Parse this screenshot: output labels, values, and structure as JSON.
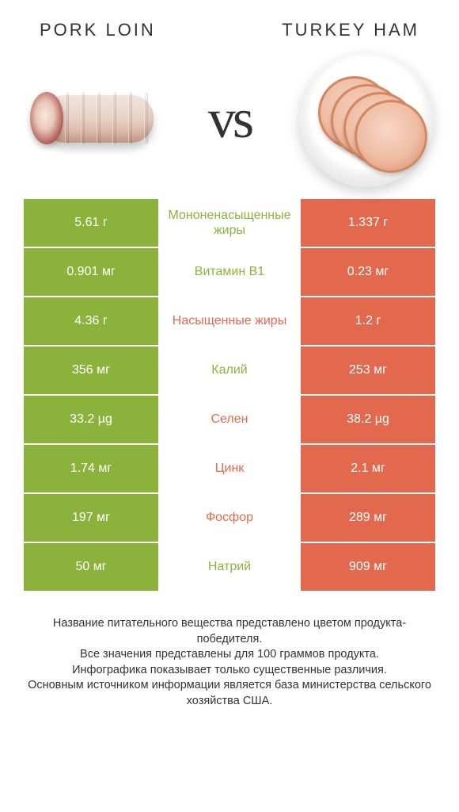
{
  "titles": {
    "left": "Pork loin",
    "right": "Turkey ham"
  },
  "vs_label": "vs",
  "colors": {
    "left": "#8bb33b",
    "right": "#e2694d",
    "row_bg": "#ffffff",
    "text": "#333333"
  },
  "table": {
    "type": "comparison-table",
    "rows": [
      {
        "left": "5.61 г",
        "label": "Мононенасыщенные жиры",
        "right": "1.337 г",
        "winner": "left"
      },
      {
        "left": "0.901 мг",
        "label": "Витамин B1",
        "right": "0.23 мг",
        "winner": "left"
      },
      {
        "left": "4.36 г",
        "label": "Насыщенные жиры",
        "right": "1.2 г",
        "winner": "right"
      },
      {
        "left": "356 мг",
        "label": "Калий",
        "right": "253 мг",
        "winner": "left"
      },
      {
        "left": "33.2 µg",
        "label": "Селен",
        "right": "38.2 µg",
        "winner": "right"
      },
      {
        "left": "1.74 мг",
        "label": "Цинк",
        "right": "2.1 мг",
        "winner": "right"
      },
      {
        "left": "197 мг",
        "label": "Фосфор",
        "right": "289 мг",
        "winner": "right"
      },
      {
        "left": "50 мг",
        "label": "Натрий",
        "right": "909 мг",
        "winner": "left"
      }
    ]
  },
  "footnote": "Название питательного вещества представлено цветом продукта-победителя.\nВсе значения представлены для 100 граммов продукта.\nИнфографика показывает только существенные различия.\nОсновным источником информации является база министерства сельского хозяйства США."
}
